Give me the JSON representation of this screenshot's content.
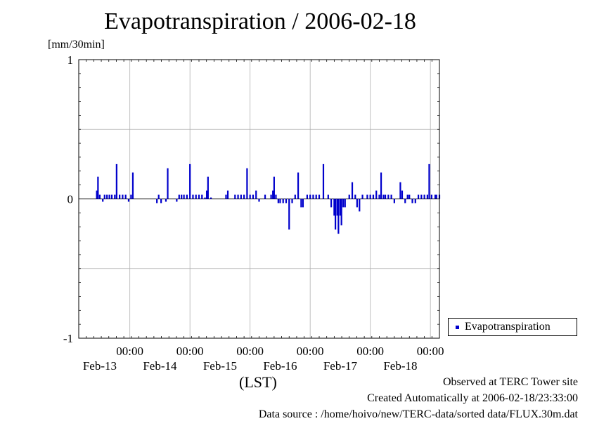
{
  "chart_data": {
    "type": "bar",
    "title": "Evapotranspiration / 2006-02-18",
    "ylabel": "[mm/30min]",
    "xlabel": "(LST)",
    "ylim": [
      -1,
      1
    ],
    "yticks": [
      "-1",
      "0",
      "1"
    ],
    "xticks": [
      {
        "time": "00:00",
        "date": "Feb-13"
      },
      {
        "time": "00:00",
        "date": "Feb-14"
      },
      {
        "time": "00:00",
        "date": "Feb-15"
      },
      {
        "time": "00:00",
        "date": "Feb-16"
      },
      {
        "time": "00:00",
        "date": "Feb-17"
      },
      {
        "time": "00:00",
        "date": "Feb-18"
      }
    ],
    "x_range_days": [
      -0.35,
      5.65
    ],
    "grid": true,
    "legend_position": "bottom-right",
    "bar_color": "#0000cc",
    "series": [
      {
        "name": "Evapotranspiration",
        "points": [
          [
            -0.05,
            0.06
          ],
          [
            -0.03,
            0.16
          ],
          [
            0.0,
            0.03
          ],
          [
            0.05,
            -0.02
          ],
          [
            0.08,
            0.03
          ],
          [
            0.12,
            0.03
          ],
          [
            0.16,
            0.03
          ],
          [
            0.2,
            0.03
          ],
          [
            0.25,
            0.03
          ],
          [
            0.28,
            0.25
          ],
          [
            0.33,
            0.03
          ],
          [
            0.38,
            0.03
          ],
          [
            0.43,
            0.03
          ],
          [
            0.48,
            -0.02
          ],
          [
            0.52,
            0.03
          ],
          [
            0.55,
            0.19
          ],
          [
            0.95,
            -0.03
          ],
          [
            0.98,
            0.03
          ],
          [
            1.02,
            -0.03
          ],
          [
            1.1,
            -0.02
          ],
          [
            1.13,
            0.22
          ],
          [
            1.28,
            -0.02
          ],
          [
            1.32,
            0.03
          ],
          [
            1.36,
            0.03
          ],
          [
            1.4,
            0.03
          ],
          [
            1.45,
            0.03
          ],
          [
            1.5,
            0.25
          ],
          [
            1.55,
            0.03
          ],
          [
            1.6,
            0.03
          ],
          [
            1.65,
            0.03
          ],
          [
            1.7,
            0.03
          ],
          [
            1.75,
            0.01
          ],
          [
            1.78,
            0.06
          ],
          [
            1.8,
            0.16
          ],
          [
            1.85,
            0.01
          ],
          [
            2.1,
            0.03
          ],
          [
            2.13,
            0.06
          ],
          [
            2.25,
            0.03
          ],
          [
            2.3,
            0.03
          ],
          [
            2.35,
            0.03
          ],
          [
            2.4,
            0.03
          ],
          [
            2.45,
            0.22
          ],
          [
            2.5,
            0.03
          ],
          [
            2.55,
            0.03
          ],
          [
            2.6,
            0.06
          ],
          [
            2.65,
            -0.02
          ],
          [
            2.75,
            0.03
          ],
          [
            2.85,
            0.03
          ],
          [
            2.88,
            0.06
          ],
          [
            2.9,
            0.16
          ],
          [
            2.93,
            0.03
          ],
          [
            2.97,
            -0.03
          ],
          [
            3.0,
            -0.03
          ],
          [
            3.05,
            -0.03
          ],
          [
            3.1,
            -0.03
          ],
          [
            3.15,
            -0.22
          ],
          [
            3.2,
            -0.03
          ],
          [
            3.25,
            0.03
          ],
          [
            3.3,
            0.19
          ],
          [
            3.35,
            -0.06
          ],
          [
            3.38,
            -0.06
          ],
          [
            3.45,
            0.03
          ],
          [
            3.5,
            0.03
          ],
          [
            3.55,
            0.03
          ],
          [
            3.6,
            0.03
          ],
          [
            3.65,
            0.03
          ],
          [
            3.72,
            0.25
          ],
          [
            3.8,
            0.03
          ],
          [
            3.85,
            -0.06
          ],
          [
            3.9,
            -0.12
          ],
          [
            3.92,
            -0.22
          ],
          [
            3.95,
            -0.12
          ],
          [
            3.97,
            -0.25
          ],
          [
            4.0,
            -0.12
          ],
          [
            4.02,
            -0.19
          ],
          [
            4.05,
            -0.06
          ],
          [
            4.08,
            -0.06
          ],
          [
            4.15,
            0.03
          ],
          [
            4.2,
            0.12
          ],
          [
            4.25,
            0.03
          ],
          [
            4.28,
            -0.06
          ],
          [
            4.32,
            -0.09
          ],
          [
            4.37,
            0.03
          ],
          [
            4.45,
            0.03
          ],
          [
            4.5,
            0.03
          ],
          [
            4.55,
            0.03
          ],
          [
            4.6,
            0.06
          ],
          [
            4.65,
            0.03
          ],
          [
            4.68,
            0.19
          ],
          [
            4.72,
            0.03
          ],
          [
            4.75,
            0.03
          ],
          [
            4.8,
            0.03
          ],
          [
            4.85,
            0.03
          ],
          [
            4.9,
            -0.03
          ],
          [
            5.0,
            0.12
          ],
          [
            5.03,
            0.06
          ],
          [
            5.08,
            -0.03
          ],
          [
            5.12,
            0.03
          ],
          [
            5.15,
            0.03
          ],
          [
            5.2,
            -0.03
          ],
          [
            5.25,
            -0.03
          ],
          [
            5.3,
            0.03
          ],
          [
            5.35,
            0.03
          ],
          [
            5.4,
            0.03
          ],
          [
            5.45,
            0.03
          ],
          [
            5.48,
            0.25
          ],
          [
            5.52,
            0.03
          ],
          [
            5.58,
            0.03
          ],
          [
            5.6,
            0.03
          ],
          [
            5.65,
            0.03
          ]
        ]
      }
    ]
  },
  "footer": {
    "observed": "Observed at TERC Tower site",
    "created": "Created Automatically at 2006-02-18/23:33:00",
    "source": "Data source : /home/hoivo/new/TERC-data/sorted  data/FLUX.30m.dat"
  }
}
